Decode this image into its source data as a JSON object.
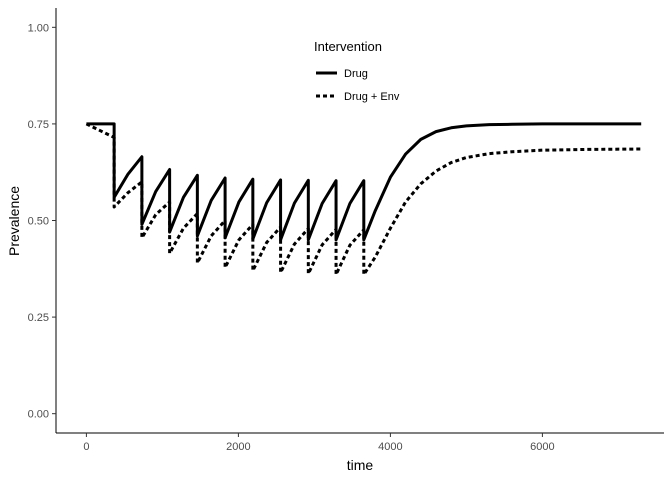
{
  "chart_data": {
    "type": "line",
    "xlabel": "time",
    "ylabel": "Prevalence",
    "xlim": [
      -400,
      7600
    ],
    "ylim": [
      -0.05,
      1.05
    ],
    "x_ticks": [
      0,
      2000,
      4000,
      6000
    ],
    "x_tick_labels": [
      "0",
      "2000",
      "4000",
      "6000"
    ],
    "y_ticks": [
      0.0,
      0.25,
      0.5,
      0.75,
      1.0
    ],
    "y_tick_labels": [
      "0.00",
      "0.25",
      "0.50",
      "0.75",
      "1.00"
    ],
    "grid": false,
    "legend": {
      "title": "Intervention",
      "position": "top-center",
      "entries": [
        "Drug",
        "Drug + Env"
      ]
    },
    "series": [
      {
        "name": "Drug",
        "style": "solid",
        "color": "#000000",
        "points": [
          [
            0,
            0.75
          ],
          [
            365,
            0.75
          ],
          [
            365,
            0.56
          ],
          [
            547,
            0.62
          ],
          [
            730,
            0.665
          ],
          [
            730,
            0.49
          ],
          [
            912,
            0.575
          ],
          [
            1095,
            0.632
          ],
          [
            1095,
            0.47
          ],
          [
            1277,
            0.56
          ],
          [
            1460,
            0.617
          ],
          [
            1460,
            0.46
          ],
          [
            1642,
            0.552
          ],
          [
            1825,
            0.61
          ],
          [
            1825,
            0.455
          ],
          [
            2007,
            0.548
          ],
          [
            2190,
            0.607
          ],
          [
            2190,
            0.452
          ],
          [
            2372,
            0.546
          ],
          [
            2555,
            0.605
          ],
          [
            2555,
            0.45
          ],
          [
            2737,
            0.545
          ],
          [
            2920,
            0.604
          ],
          [
            2920,
            0.45
          ],
          [
            3102,
            0.544
          ],
          [
            3285,
            0.603
          ],
          [
            3285,
            0.45
          ],
          [
            3467,
            0.544
          ],
          [
            3650,
            0.603
          ],
          [
            3650,
            0.45
          ],
          [
            3800,
            0.525
          ],
          [
            4000,
            0.612
          ],
          [
            4200,
            0.672
          ],
          [
            4400,
            0.71
          ],
          [
            4600,
            0.73
          ],
          [
            4800,
            0.74
          ],
          [
            5000,
            0.745
          ],
          [
            5300,
            0.748
          ],
          [
            5600,
            0.749
          ],
          [
            6000,
            0.75
          ],
          [
            6600,
            0.75
          ],
          [
            7300,
            0.75
          ]
        ]
      },
      {
        "name": "Drug + Env",
        "style": "dashed",
        "color": "#000000",
        "points": [
          [
            0,
            0.75
          ],
          [
            365,
            0.715
          ],
          [
            365,
            0.535
          ],
          [
            547,
            0.572
          ],
          [
            730,
            0.6
          ],
          [
            730,
            0.455
          ],
          [
            912,
            0.515
          ],
          [
            1095,
            0.548
          ],
          [
            1095,
            0.415
          ],
          [
            1277,
            0.48
          ],
          [
            1460,
            0.518
          ],
          [
            1460,
            0.39
          ],
          [
            1642,
            0.46
          ],
          [
            1825,
            0.5
          ],
          [
            1825,
            0.378
          ],
          [
            2007,
            0.45
          ],
          [
            2190,
            0.49
          ],
          [
            2190,
            0.37
          ],
          [
            2372,
            0.443
          ],
          [
            2555,
            0.483
          ],
          [
            2555,
            0.365
          ],
          [
            2737,
            0.439
          ],
          [
            2920,
            0.479
          ],
          [
            2920,
            0.362
          ],
          [
            3102,
            0.437
          ],
          [
            3285,
            0.477
          ],
          [
            3285,
            0.36
          ],
          [
            3467,
            0.436
          ],
          [
            3650,
            0.476
          ],
          [
            3650,
            0.36
          ],
          [
            3800,
            0.405
          ],
          [
            4000,
            0.48
          ],
          [
            4200,
            0.548
          ],
          [
            4400,
            0.595
          ],
          [
            4600,
            0.628
          ],
          [
            4800,
            0.65
          ],
          [
            5000,
            0.663
          ],
          [
            5300,
            0.673
          ],
          [
            5600,
            0.678
          ],
          [
            6000,
            0.682
          ],
          [
            6600,
            0.684
          ],
          [
            7300,
            0.685
          ]
        ]
      }
    ]
  }
}
